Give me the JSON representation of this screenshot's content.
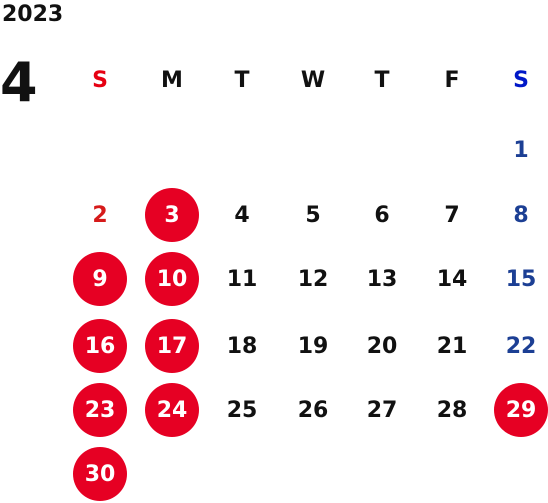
{
  "calendar": {
    "year": "2023",
    "month": "4",
    "weekdays": [
      "S",
      "M",
      "T",
      "W",
      "T",
      "F",
      "S"
    ],
    "start_weekday": 6,
    "days_in_month": 30,
    "holidays": [
      3,
      9,
      10,
      16,
      17,
      23,
      24,
      29,
      30
    ]
  },
  "colors": {
    "holiday_circle": "#e60023",
    "sunday_header": "#e60012",
    "saturday_header": "#0018c8",
    "sunday_text": "#d61a1a",
    "saturday_text": "#1c3f94"
  }
}
